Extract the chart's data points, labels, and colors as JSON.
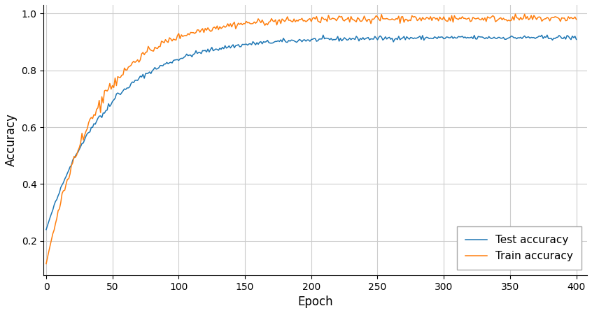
{
  "title": "",
  "xlabel": "Epoch",
  "ylabel": "Accuracy",
  "xlim": [
    -2,
    408
  ],
  "ylim": [
    0.08,
    1.03
  ],
  "xticks": [
    0,
    50,
    100,
    150,
    200,
    250,
    300,
    350,
    400
  ],
  "yticks": [
    0.2,
    0.4,
    0.6,
    0.8,
    1.0
  ],
  "n_epochs": 401,
  "test_color": "#1f77b4",
  "train_color": "#ff7f0e",
  "test_label": "Test accuracy",
  "train_label": "Train accuracy",
  "figsize": [
    8.46,
    4.48
  ],
  "dpi": 100,
  "linewidth": 1.1,
  "seed": 42
}
